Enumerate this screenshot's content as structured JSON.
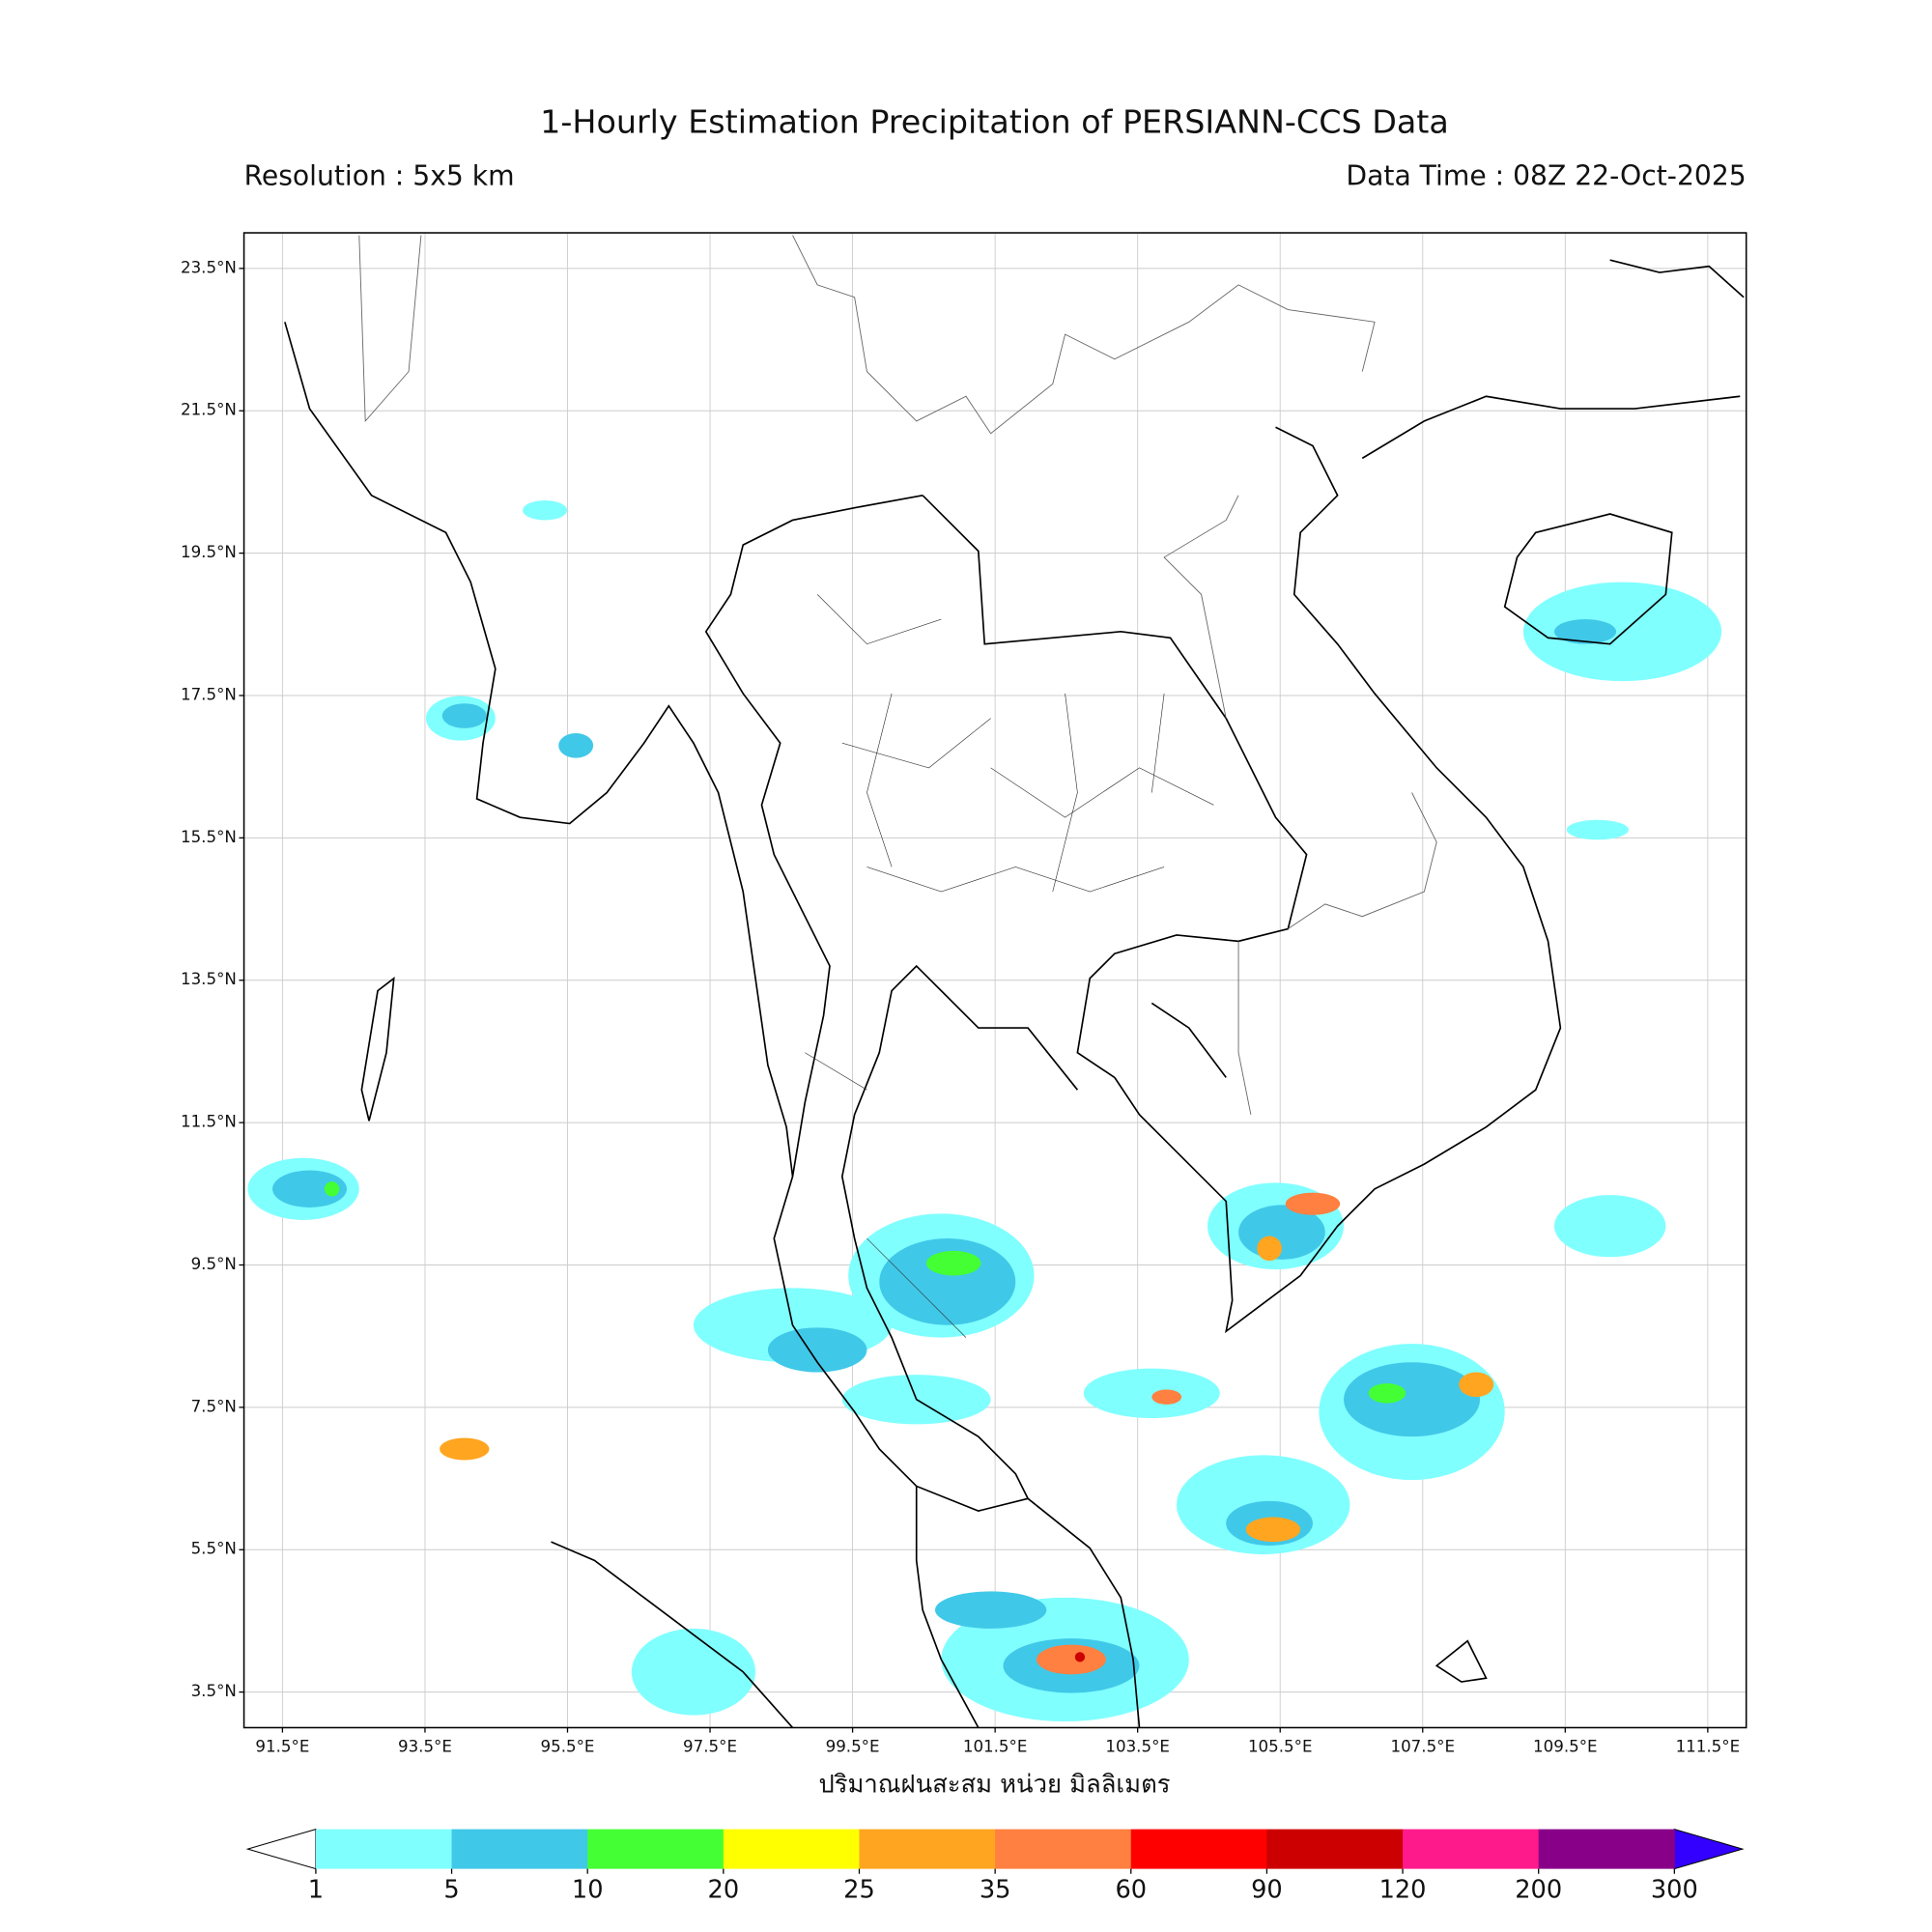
{
  "map": {
    "title": "1-Hourly Estimation Precipitation of PERSIANN-CCS Data",
    "resolution": "Resolution : 5x5 km",
    "data_time": "Data Time : 08Z 22-Oct-2025",
    "xlabel": "ปริมาณฝนสะสม หน่วย มิลลิเมตร",
    "xlim": [
      90.96,
      112.04
    ],
    "ylim": [
      3.0,
      24.0
    ],
    "xticks": [
      {
        "value": 91.5,
        "label": "91.5°E"
      },
      {
        "value": 93.5,
        "label": "93.5°E"
      },
      {
        "value": 95.5,
        "label": "95.5°E"
      },
      {
        "value": 97.5,
        "label": "97.5°E"
      },
      {
        "value": 99.5,
        "label": "99.5°E"
      },
      {
        "value": 101.5,
        "label": "101.5°E"
      },
      {
        "value": 103.5,
        "label": "103.5°E"
      },
      {
        "value": 105.5,
        "label": "105.5°E"
      },
      {
        "value": 107.5,
        "label": "107.5°E"
      },
      {
        "value": 109.5,
        "label": "109.5°E"
      },
      {
        "value": 111.5,
        "label": "111.5°E"
      }
    ],
    "yticks": [
      {
        "value": 3.5,
        "label": "3.5°N"
      },
      {
        "value": 5.5,
        "label": "5.5°N"
      },
      {
        "value": 7.5,
        "label": "7.5°N"
      },
      {
        "value": 9.5,
        "label": "9.5°N"
      },
      {
        "value": 11.5,
        "label": "11.5°N"
      },
      {
        "value": 13.5,
        "label": "13.5°N"
      },
      {
        "value": 15.5,
        "label": "15.5°N"
      },
      {
        "value": 17.5,
        "label": "17.5°N"
      },
      {
        "value": 19.5,
        "label": "19.5°N"
      },
      {
        "value": 21.5,
        "label": "21.5°N"
      },
      {
        "value": 23.5,
        "label": "23.5°N"
      }
    ],
    "grid": true,
    "colorbar": {
      "levels": [
        1,
        5,
        10,
        20,
        25,
        35,
        60,
        90,
        120,
        200,
        300
      ],
      "colors": [
        "#80ffff",
        "#40c8e8",
        "#44ff33",
        "#ffff00",
        "#ffa520",
        "#ff8040",
        "#ff0000",
        "#cc0000",
        "#ff1a8c",
        "#880088"
      ],
      "under_color": "#ffffff",
      "over_color": "#3300ff"
    }
  }
}
